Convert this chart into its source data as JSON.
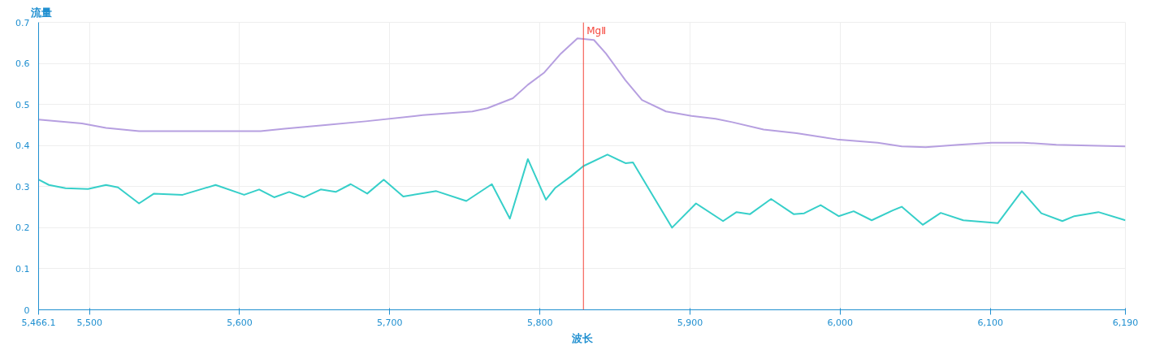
{
  "chart_data": {
    "type": "line",
    "xlabel": "波长",
    "ylabel": "流量",
    "xlim": [
      5466.1,
      6190
    ],
    "ylim": [
      0,
      0.7
    ],
    "xticks": [
      {
        "value": 5466.1,
        "label": "5,466.1"
      },
      {
        "value": 5500,
        "label": "5,500"
      },
      {
        "value": 5600,
        "label": "5,600"
      },
      {
        "value": 5700,
        "label": "5,700"
      },
      {
        "value": 5800,
        "label": "5,800"
      },
      {
        "value": 5900,
        "label": "5,900"
      },
      {
        "value": 6000,
        "label": "6,000"
      },
      {
        "value": 6100,
        "label": "6,100"
      },
      {
        "value": 6190,
        "label": "6,190"
      }
    ],
    "yticks": [
      0,
      0.1,
      0.2,
      0.3,
      0.4,
      0.5,
      0.6,
      0.7
    ],
    "grid": true,
    "marker": "none",
    "line_style": "solid",
    "ref_lines": [
      {
        "axis": "x",
        "value": 5829,
        "label": "MgⅡ",
        "color": "#f5443a"
      }
    ],
    "series": [
      {
        "color": "#b69fe0",
        "x": [
          5466.1,
          5495,
          5511,
          5533,
          5565,
          5599,
          5614,
          5630,
          5657,
          5684,
          5722,
          5755,
          5765,
          5782,
          5792,
          5803,
          5814,
          5825,
          5836,
          5844,
          5857,
          5868,
          5884,
          5901,
          5917,
          5928,
          5949,
          5971,
          5998,
          6025,
          6041,
          6057,
          6079,
          6101,
          6122,
          6144,
          6166,
          6190
        ],
        "values": [
          0.463,
          0.454,
          0.443,
          0.435,
          0.435,
          0.435,
          0.435,
          0.441,
          0.45,
          0.459,
          0.474,
          0.483,
          0.491,
          0.515,
          0.548,
          0.578,
          0.624,
          0.661,
          0.657,
          0.624,
          0.559,
          0.511,
          0.483,
          0.472,
          0.465,
          0.457,
          0.439,
          0.43,
          0.415,
          0.407,
          0.398,
          0.396,
          0.402,
          0.407,
          0.407,
          0.402,
          0.4,
          0.398
        ]
      },
      {
        "color": "#36cfc9",
        "x": [
          5466.1,
          5473,
          5484,
          5499,
          5511,
          5519,
          5533,
          5543,
          5562,
          5584,
          5603,
          5613,
          5623,
          5633,
          5643,
          5654,
          5664,
          5674,
          5685,
          5696,
          5709,
          5731,
          5751,
          5768,
          5780,
          5792,
          5804,
          5810,
          5821,
          5829,
          5845,
          5857,
          5862,
          5888,
          5904,
          5922,
          5931,
          5940,
          5954,
          5969,
          5976,
          5987,
          5999,
          6009,
          6021,
          6035,
          6041,
          6055,
          6067,
          6082,
          6105,
          6121,
          6134,
          6148,
          6156,
          6172,
          6190
        ],
        "values": [
          0.317,
          0.304,
          0.296,
          0.294,
          0.304,
          0.298,
          0.259,
          0.283,
          0.28,
          0.304,
          0.28,
          0.293,
          0.274,
          0.287,
          0.274,
          0.293,
          0.287,
          0.306,
          0.283,
          0.317,
          0.276,
          0.289,
          0.265,
          0.306,
          0.222,
          0.367,
          0.268,
          0.296,
          0.326,
          0.35,
          0.378,
          0.357,
          0.359,
          0.2,
          0.259,
          0.216,
          0.238,
          0.233,
          0.27,
          0.233,
          0.235,
          0.255,
          0.228,
          0.24,
          0.218,
          0.242,
          0.251,
          0.207,
          0.236,
          0.218,
          0.211,
          0.289,
          0.235,
          0.216,
          0.228,
          0.238,
          0.218
        ]
      }
    ]
  }
}
